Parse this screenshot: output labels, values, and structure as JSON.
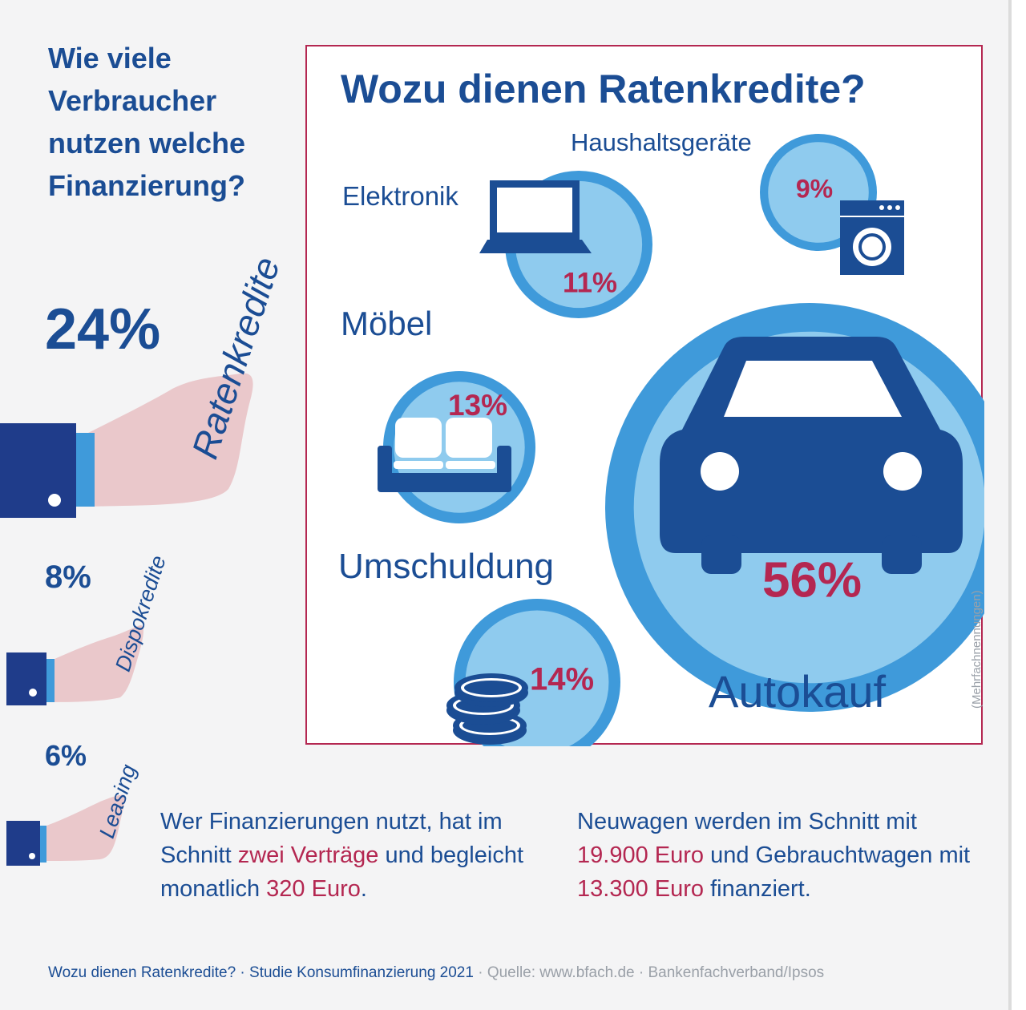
{
  "left": {
    "question": "Wie viele Verbraucher nutzen welche Finanzierung?",
    "items": [
      {
        "label": "Ratenkredite",
        "percent": "24%",
        "value": 24
      },
      {
        "label": "Dispokredite",
        "percent": "8%",
        "value": 8
      },
      {
        "label": "Leasing",
        "percent": "6%",
        "value": 6
      }
    ]
  },
  "chart_data": {
    "type": "bubble",
    "title": "Wozu dienen Ratenkredite?",
    "note": "(Mehrfachnennungen)",
    "categories": [
      "Autokauf",
      "Umschuldung",
      "Möbel",
      "Elektronik",
      "Haushaltsgeräte"
    ],
    "values": [
      56,
      14,
      13,
      11,
      9
    ],
    "labels": [
      "56%",
      "14%",
      "13%",
      "11%",
      "9%"
    ]
  },
  "icons": [
    "car-icon",
    "coins-icon",
    "sofa-icon",
    "laptop-icon",
    "washing-machine-icon",
    "hand-icon"
  ],
  "colors": {
    "blue_dark": "#1b4d94",
    "blue_mid": "#3f9ada",
    "blue_light": "#8fcbee",
    "magenta": "#b42751",
    "skin": "#eac8cb"
  },
  "notes": {
    "left": {
      "p1": "Wer Finanzierungen nutzt, hat im Schnitt ",
      "h1": "zwei Verträge",
      "p2": " und begleicht monatlich ",
      "h2": "320 Euro",
      "p3": "."
    },
    "right": {
      "p1": "Neuwagen werden im Schnitt mit ",
      "h1": "19.900 Euro",
      "p2": " und Gebrauchtwagen mit ",
      "h2": "13.300 Euro",
      "p3": " finanziert."
    }
  },
  "footer": {
    "left": "Wozu dienen Ratenkredite? · Studie Konsumfinanzierung 2021",
    "right": " · Quelle: www.bfach.de · Bankenfachverband/Ipsos"
  }
}
